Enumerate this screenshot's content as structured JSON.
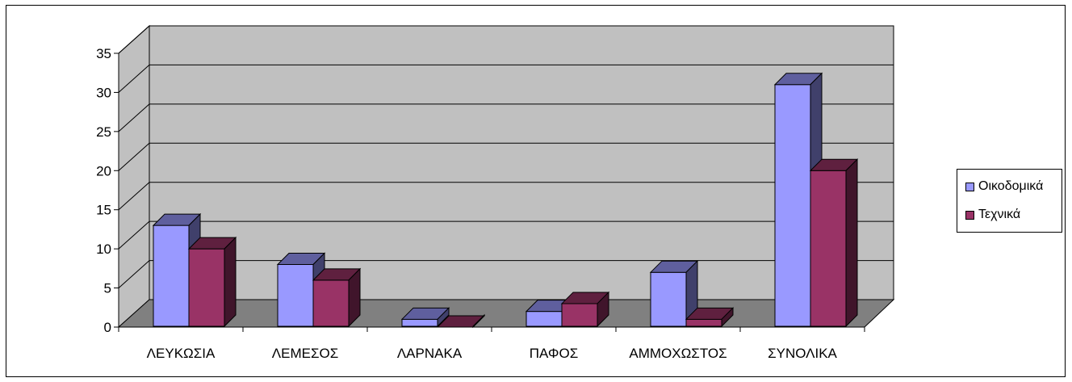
{
  "chart_data": {
    "type": "bar",
    "title": "",
    "xlabel": "",
    "ylabel": "",
    "categories": [
      "ΛΕΥΚΩΣΙΑ",
      "ΛΕΜΕΣΟΣ",
      "ΛΑΡΝΑΚΑ",
      "ΠΑΦΟΣ",
      "ΑΜΜΟΧΩΣΤΟΣ",
      "ΣΥΝΟΛΙΚΑ"
    ],
    "series": [
      {
        "name": "Οικοδομικά",
        "values": [
          13,
          8,
          1,
          2,
          7,
          31
        ],
        "color": "#9999ff"
      },
      {
        "name": "Τεχνικά",
        "values": [
          10,
          6,
          0,
          3,
          1,
          20
        ],
        "color": "#993366"
      }
    ],
    "ylim": [
      0,
      35
    ],
    "yticks": [
      0,
      5,
      10,
      15,
      20,
      25,
      30,
      35
    ],
    "grid": true,
    "legend": "right"
  }
}
